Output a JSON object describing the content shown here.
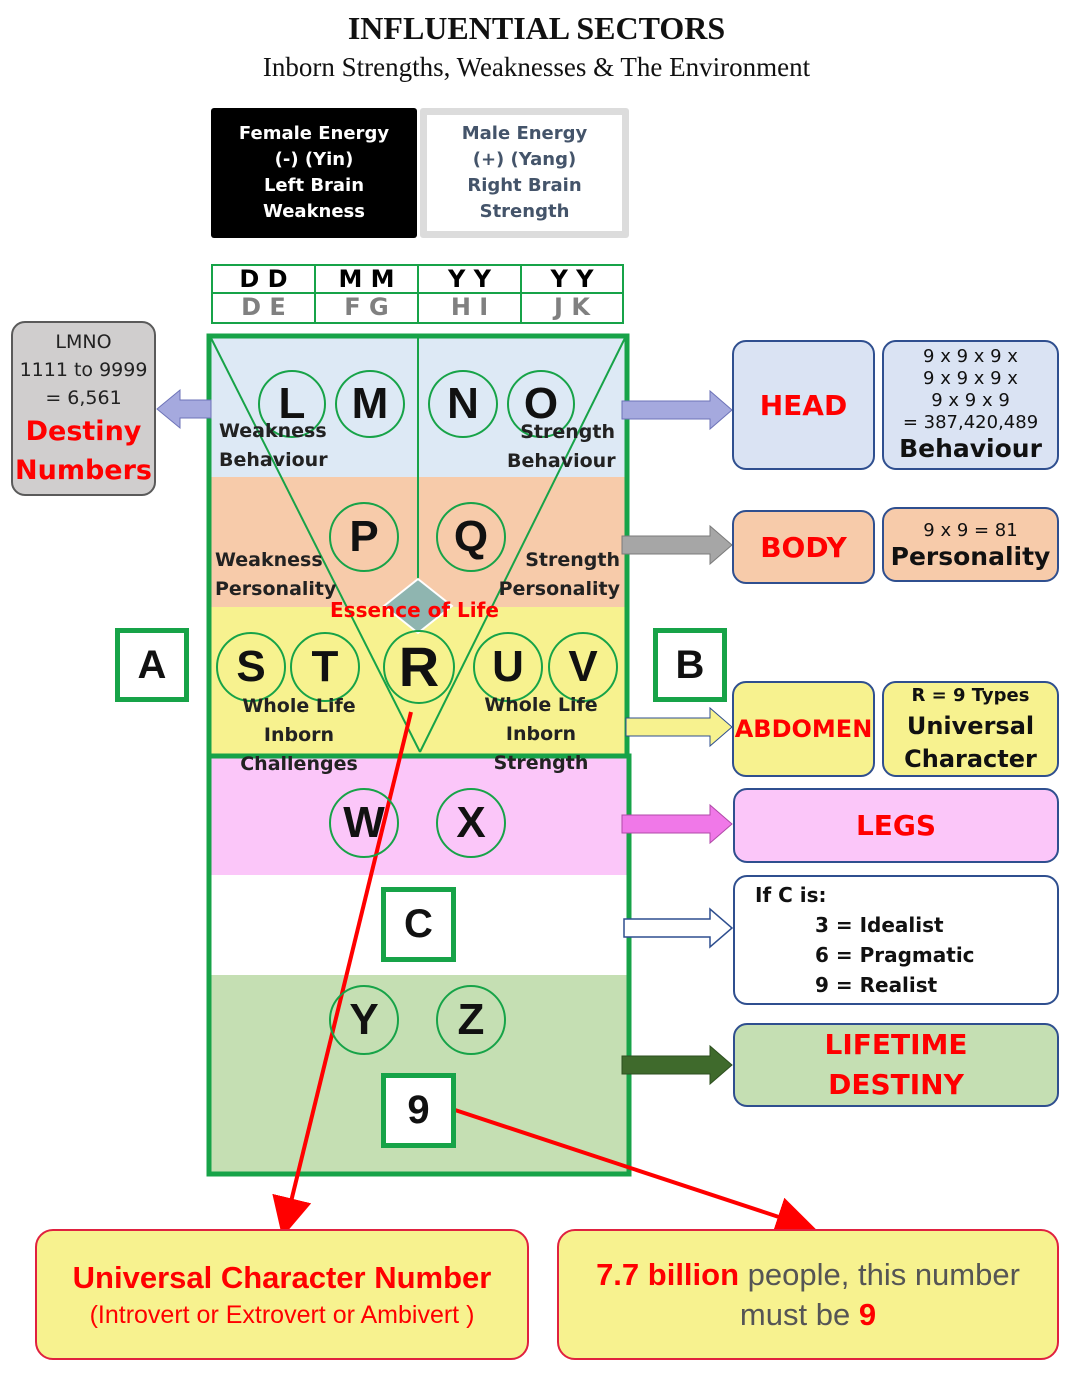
{
  "header": {
    "title": "INFLUENTIAL SECTORS",
    "subtitle": "Inborn Strengths, Weaknesses & The Environment"
  },
  "energy": {
    "female": {
      "line1": "Female Energy",
      "line2": "(-)  (Yin)",
      "line3": "Left Brain",
      "line4": "Weakness"
    },
    "male": {
      "line1": "Male Energy",
      "line2": "(+)  (Yang)",
      "line3": "Right Brain",
      "line4": "Strength"
    }
  },
  "date_table": {
    "top": [
      "D  D",
      "M  M",
      "Y  Y",
      "Y  Y"
    ],
    "bottom": [
      "D  E",
      "F  G",
      "H  I",
      "J  K"
    ]
  },
  "letters": {
    "L": "L",
    "M": "M",
    "N": "N",
    "O": "O",
    "P": "P",
    "Q": "Q",
    "S": "S",
    "T": "T",
    "R": "R",
    "U": "U",
    "V": "V",
    "W": "W",
    "X": "X",
    "Y": "Y",
    "Z": "Z"
  },
  "labels": {
    "weakness_behaviour": [
      "Weakness",
      "Behaviour"
    ],
    "strength_behaviour": [
      "Strength",
      "Behaviour"
    ],
    "weakness_personality": [
      "Weakness",
      "Personality"
    ],
    "strength_personality": [
      "Strength",
      "Personality"
    ],
    "essence": "Essence of Life",
    "challenges": [
      "Whole Life Inborn",
      "Challenges"
    ],
    "strength": [
      "Whole Life Inborn",
      "Strength"
    ]
  },
  "boxes": {
    "A": "A",
    "B": "B",
    "C": "C",
    "nine": "9"
  },
  "destiny": {
    "line1": "LMNO",
    "line2": "1111 to 9999",
    "line3": "= 6,561",
    "big1": "Destiny",
    "big2": "Numbers"
  },
  "sectors": {
    "head": "HEAD",
    "head_detail": {
      "l1": "9 x 9 x 9 x",
      "l2": "9 x 9 x 9 x",
      "l3": "9 x 9 x 9",
      "l4": "= 387,420,489",
      "big": "Behaviour"
    },
    "body": "BODY",
    "body_detail": {
      "l1": "9 x 9 = 81",
      "big": "Personality"
    },
    "abdomen": "ABDOMEN",
    "abdomen_detail": {
      "l1": "R = 9 Types",
      "big1": "Universal",
      "big2": "Character"
    },
    "legs": "LEGS",
    "c_detail": {
      "l1": "If C is:",
      "l2": "3 = Idealist",
      "l3": "6 = Pragmatic",
      "l4": "9 = Realist"
    },
    "lifetime": [
      "LIFETIME",
      "DESTINY"
    ]
  },
  "bottom": {
    "left_title": "Universal Character Number",
    "left_sub": "(Introvert or Extrovert or Ambivert )",
    "right_red": "7.7 billion",
    "right_rest": " people, this number",
    "right_line2": "must be ",
    "right_nine": "9"
  },
  "colors": {
    "green": "#17a348",
    "head_band": "#dde9f5",
    "body_band": "#f7cbaa",
    "abdomen_band": "#f7f28f",
    "legs_band": "#fbc6f9",
    "destiny_band": "#c5dfb3",
    "red": "#ff0000"
  }
}
